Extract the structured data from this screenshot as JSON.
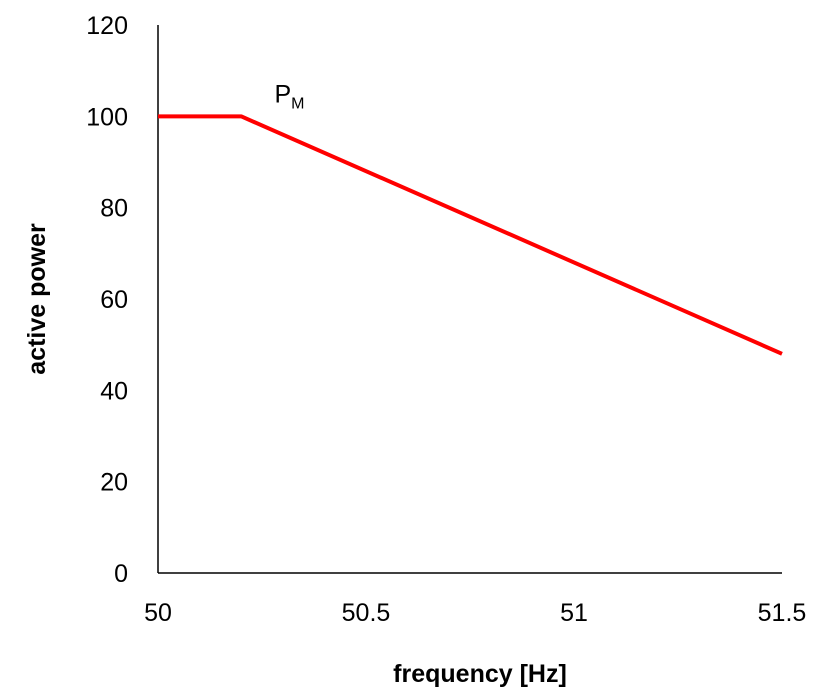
{
  "chart_data": {
    "type": "line",
    "title": "",
    "xlabel": "frequency [Hz]",
    "ylabel": "active power",
    "xlim": [
      50,
      51.5
    ],
    "ylim": [
      0,
      120
    ],
    "x_ticks": [
      50,
      50.5,
      51,
      51.5
    ],
    "y_ticks": [
      0,
      20,
      40,
      60,
      80,
      100,
      120
    ],
    "x_tick_labels": [
      "50",
      "50.5",
      "51",
      "51.5"
    ],
    "y_tick_labels": [
      "0",
      "20",
      "40",
      "60",
      "80",
      "100",
      "120"
    ],
    "grid": false,
    "legend": "none",
    "series": [
      {
        "color": "#ff0000",
        "x": [
          50,
          50.2,
          51.5
        ],
        "y": [
          100,
          100,
          48
        ]
      }
    ],
    "annotations": [
      {
        "main": "P",
        "sub": "M",
        "x": 50.28,
        "y": 103
      }
    ]
  }
}
